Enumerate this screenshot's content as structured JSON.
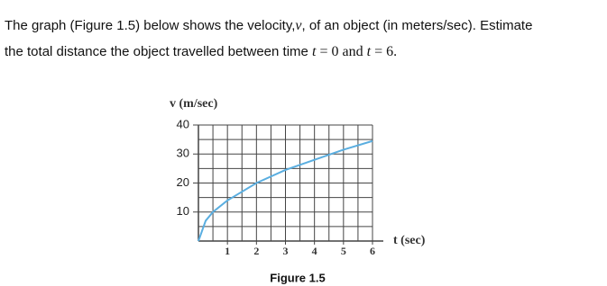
{
  "question": [
    "The graph (Figure 1.5) below shows the velocity,",
    "v",
    ", of an object (in meters/sec). Estimate",
    "the total distance the object travelled between time ",
    "t",
    " = 0 and ",
    "t",
    " = 6."
  ],
  "caption": "Figure 1.5",
  "chart_data": {
    "type": "line",
    "ylabel": "v (m/sec)",
    "xlabel": "t (sec)",
    "x": [
      0,
      0.25,
      0.5,
      1,
      2,
      3,
      4,
      5,
      6
    ],
    "values": [
      0,
      7,
      10,
      14,
      20,
      24.5,
      28,
      31.5,
      34.5
    ],
    "color": "#5aaee0",
    "xlim": [
      0,
      6
    ],
    "ylim": [
      0,
      40
    ],
    "xticks": [
      1,
      2,
      3,
      4,
      5,
      6
    ],
    "yticks": [
      10,
      20,
      30,
      40
    ],
    "grid": true,
    "minor_grid": true
  }
}
